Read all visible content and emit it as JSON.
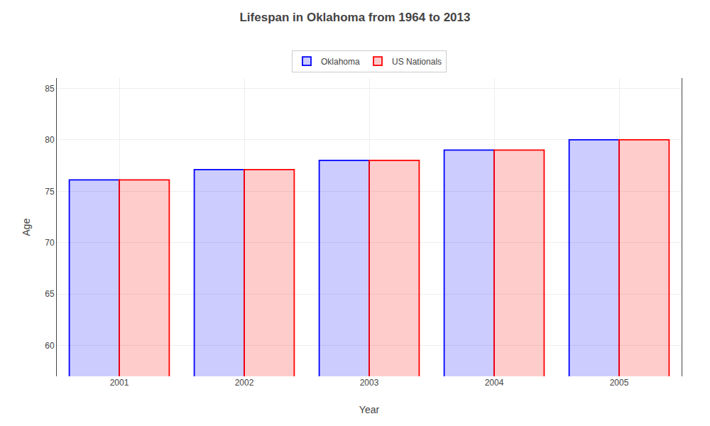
{
  "chart_data": {
    "type": "bar",
    "title": "Lifespan in Oklahoma from 1964 to 2013",
    "xlabel": "Year",
    "ylabel": "Age",
    "categories": [
      "2001",
      "2002",
      "2003",
      "2004",
      "2005"
    ],
    "series": [
      {
        "name": "Oklahoma",
        "color": "#0000ff",
        "values": [
          76.1,
          77.1,
          78.0,
          79.0,
          80.0
        ]
      },
      {
        "name": "US Nationals",
        "color": "#ff0000",
        "values": [
          76.1,
          77.1,
          78.0,
          79.0,
          80.0
        ]
      }
    ],
    "ylim": [
      57,
      86
    ],
    "yticks": [
      60,
      65,
      70,
      75,
      80,
      85
    ],
    "grid": true,
    "legend": "upper center"
  }
}
